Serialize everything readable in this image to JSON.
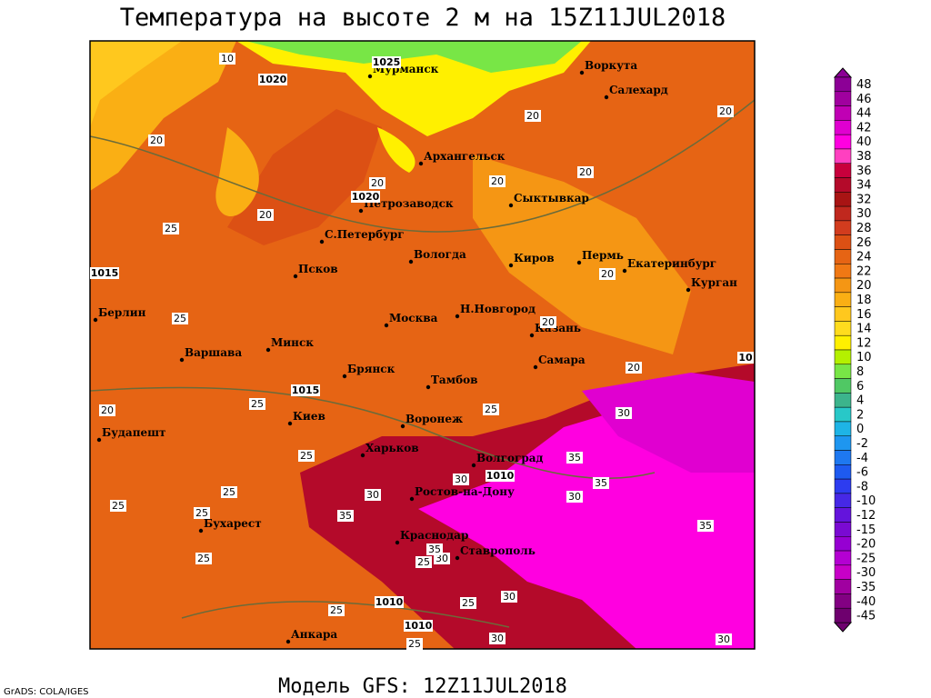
{
  "header": {
    "title": "Температура на высоте 2 м на 15Z11JUL2018"
  },
  "footer": {
    "model": "Модель GFS: 12Z11JUL2018",
    "credit": "GrADS: COLA/IGES"
  },
  "colorbar": {
    "labels": [
      "48",
      "46",
      "44",
      "42",
      "40",
      "38",
      "36",
      "34",
      "32",
      "30",
      "28",
      "26",
      "24",
      "22",
      "20",
      "18",
      "16",
      "14",
      "12",
      "10",
      "8",
      "6",
      "4",
      "2",
      "0",
      "-2",
      "-4",
      "-6",
      "-8",
      "-10",
      "-12",
      "-15",
      "-20",
      "-25",
      "-30",
      "-35",
      "-40",
      "-45"
    ],
    "colors": [
      "#8c0096",
      "#a0009f",
      "#c000b4",
      "#e000d0",
      "#ff00e0",
      "#ff40c0",
      "#c8003c",
      "#b40a2a",
      "#a81414",
      "#c0281e",
      "#d23c1e",
      "#dc5014",
      "#e66414",
      "#f07814",
      "#f59614",
      "#faaf14",
      "#ffc81e",
      "#ffdc1e",
      "#fff000",
      "#b4f000",
      "#78e646",
      "#50c864",
      "#3cb48c",
      "#28c8c8",
      "#1eb4e6",
      "#1e96f0",
      "#1e78f0",
      "#1e5af0",
      "#2d3cf0",
      "#4628e6",
      "#6414dc",
      "#7a0ad2",
      "#9600d2",
      "#b400d2",
      "#c800c8",
      "#a000a0",
      "#820082",
      "#6e006e"
    ]
  },
  "cities": [
    "Мурманск",
    "Воркута",
    "Салехард",
    "Архангельск",
    "Петрозаводск",
    "Сыктывкар",
    "С.Петербург",
    "Вологда",
    "Киров",
    "Пермь",
    "Екатеринбург",
    "Курган",
    "Псков",
    "Н.Новгород",
    "Берлин",
    "Москва",
    "Казань",
    "Минск",
    "Варшава",
    "Самара",
    "Брянск",
    "Тамбов",
    "Киев",
    "Воронеж",
    "Будапешт",
    "Харьков",
    "Волгоград",
    "Ростов-на-Дону",
    "Бухарест",
    "Краснодар",
    "Ставрополь",
    "Анкара"
  ],
  "isobar_labels": [
    "1020",
    "1025",
    "1020",
    "1015",
    "1015",
    "1010",
    "1010",
    "1010",
    "10"
  ],
  "temperature_labels": [
    "10",
    "20",
    "20",
    "20",
    "20",
    "25",
    "20",
    "20",
    "20",
    "20",
    "20",
    "25",
    "20",
    "25",
    "25",
    "20",
    "25",
    "25",
    "30",
    "25",
    "35",
    "30",
    "35",
    "35",
    "30",
    "30",
    "35",
    "25",
    "25",
    "25",
    "25",
    "30",
    "35",
    "25",
    "30",
    "30",
    "30",
    "25"
  ]
}
